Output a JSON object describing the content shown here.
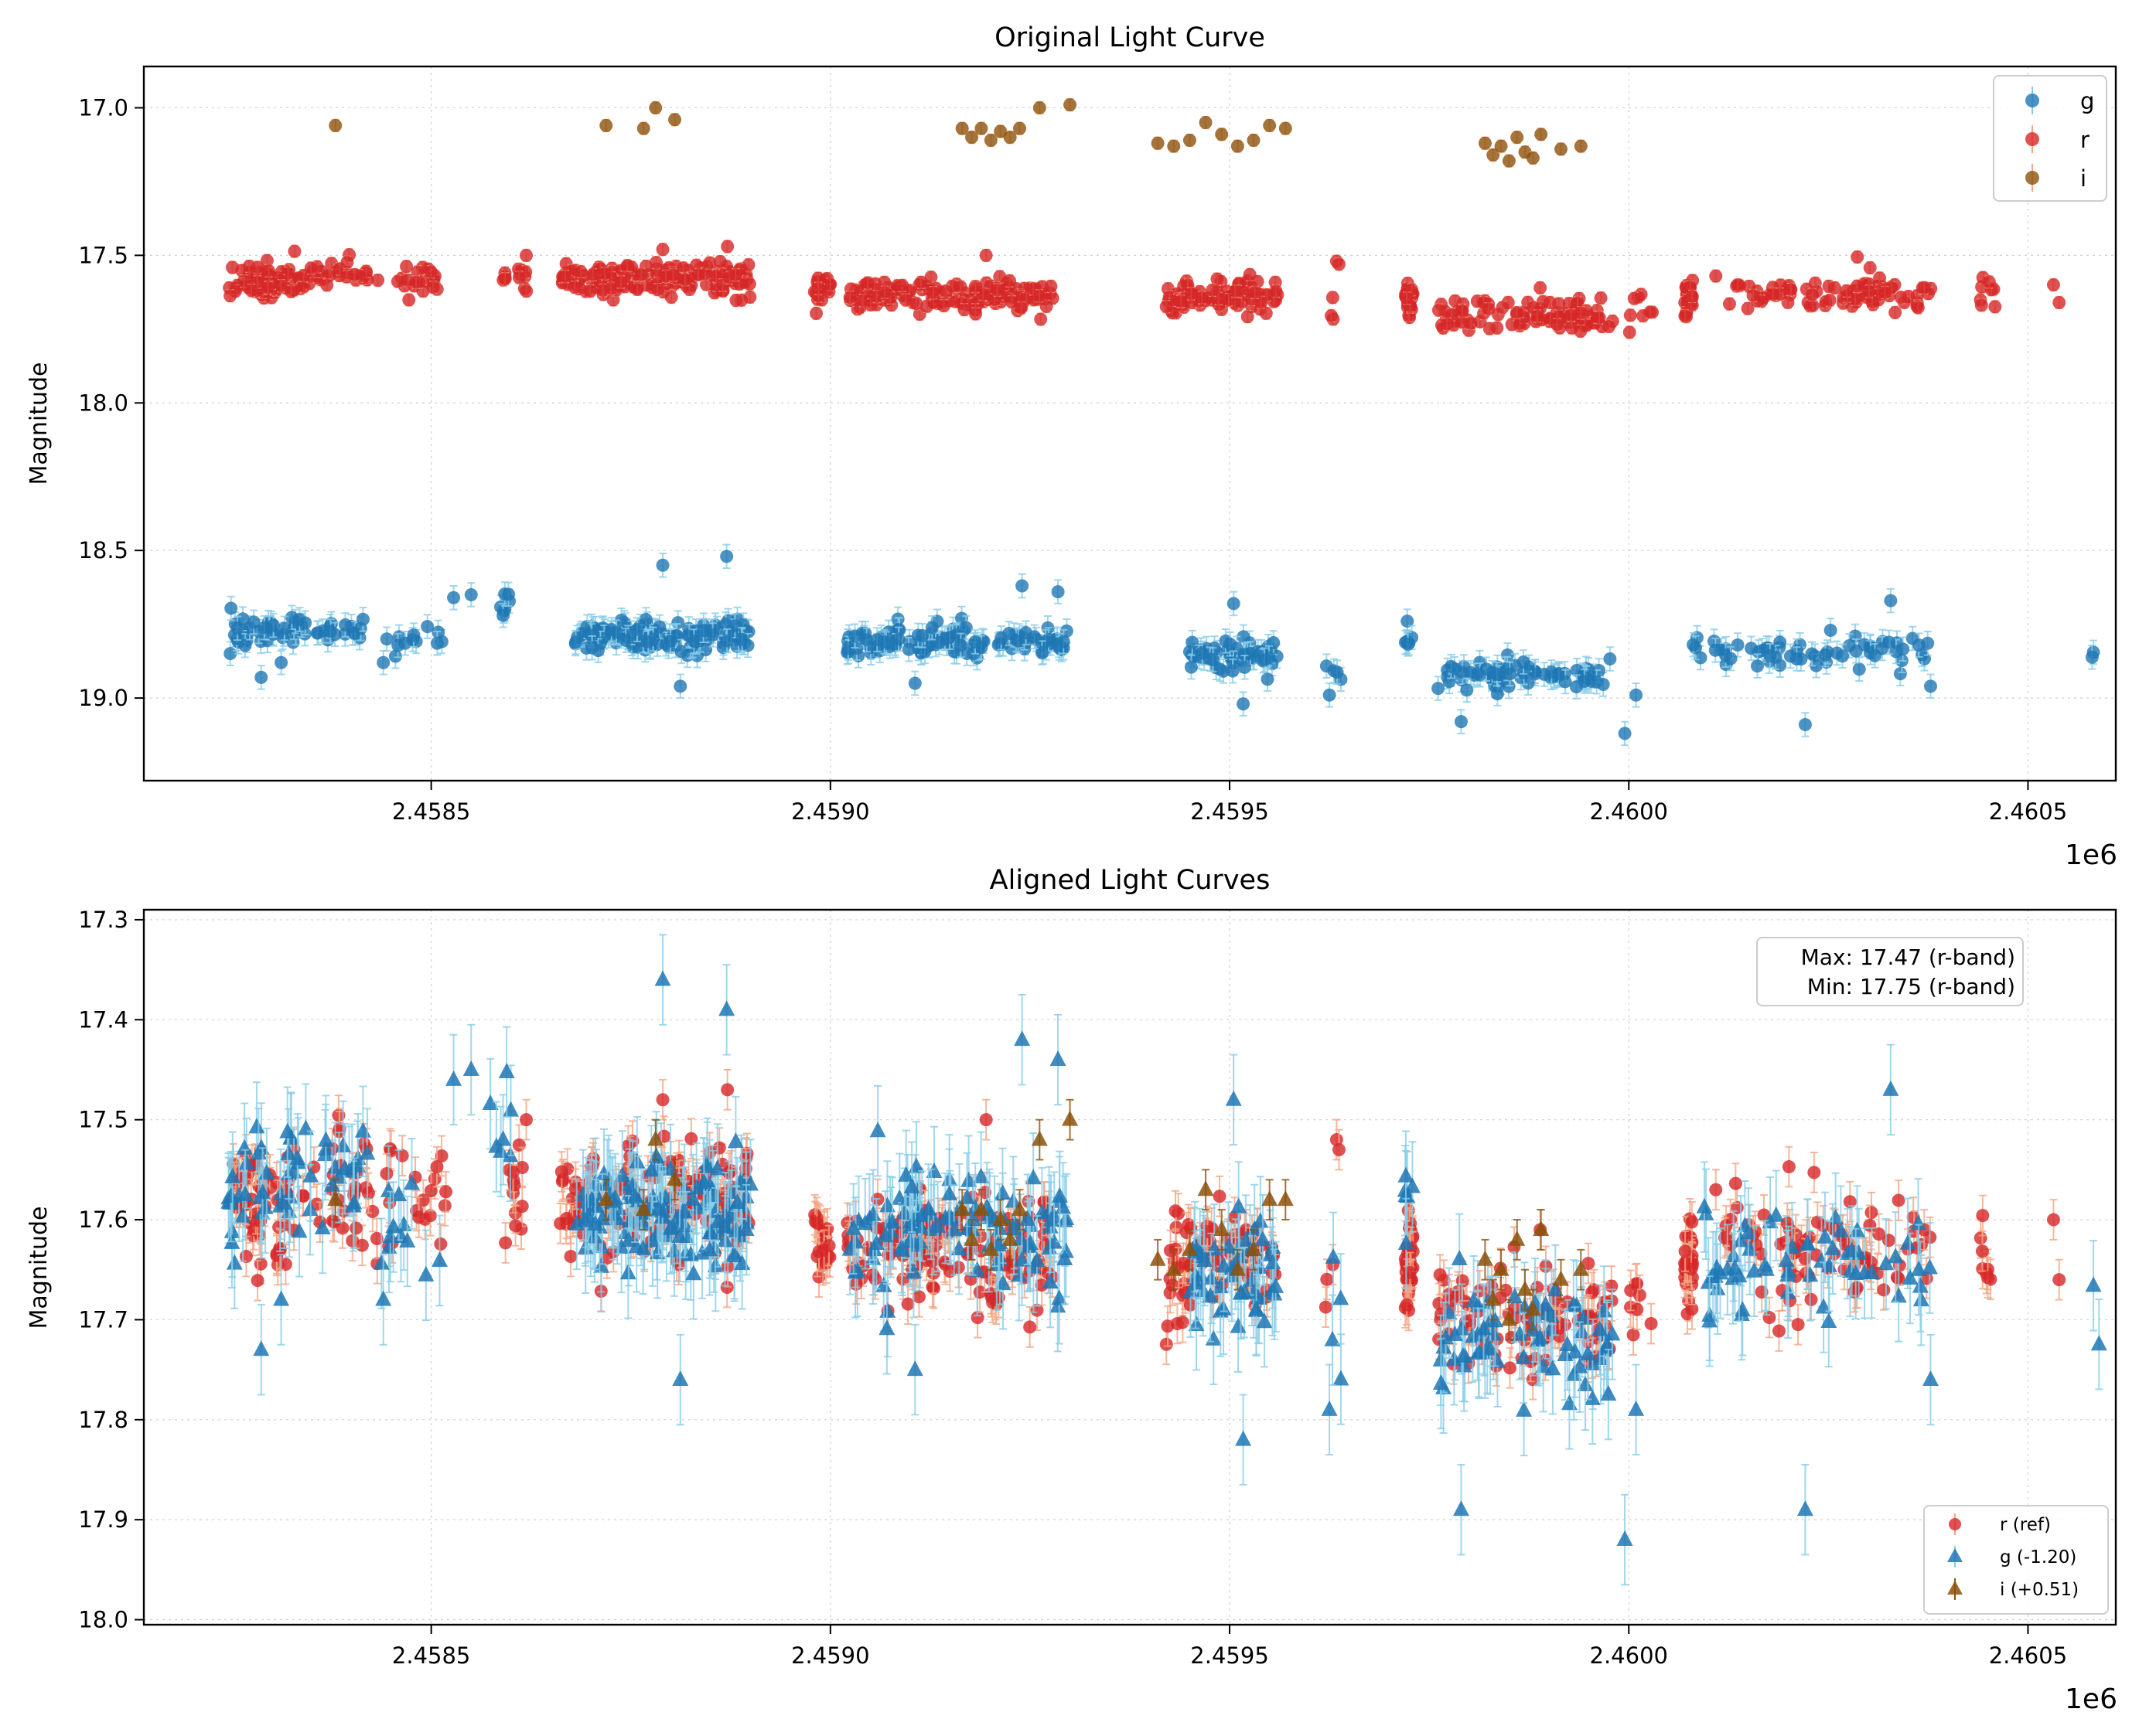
{
  "chart_data": [
    {
      "type": "scatter",
      "title": "Original Light Curve",
      "xlabel": "",
      "ylabel": "Magnitude",
      "x_offset_label": "1e6",
      "xlim": [
        2458140,
        2460610
      ],
      "ylim": [
        19.28,
        16.86
      ],
      "y_inverted": true,
      "grid": true,
      "xticks": [
        2458500,
        2459000,
        2459500,
        2460000,
        2460500
      ],
      "xtick_labels": [
        "2.4585",
        "2.4590",
        "2.4595",
        "2.4600",
        "2.4605"
      ],
      "yticks": [
        17.0,
        17.5,
        18.0,
        18.5,
        19.0
      ],
      "ytick_labels": [
        "17.0",
        "17.5",
        "18.0",
        "18.5",
        "19.0"
      ],
      "legend": {
        "position": "top-right",
        "entries": [
          "g",
          "r",
          "i"
        ]
      },
      "series": [
        {
          "name": "g",
          "color": "#1f77b4",
          "marker": "circle",
          "base_mag": 18.8,
          "err": 0.04,
          "segments": [
            [
              2458245,
              2458335,
              18.77,
              35
            ],
            [
              2458335,
              2458420,
              18.76,
              20
            ],
            [
              2458430,
              2458520,
              18.8,
              12
            ],
            [
              2458570,
              2458600,
              18.7,
              6
            ],
            [
              2458680,
              2458900,
              18.79,
              130
            ],
            [
              2459020,
              2459300,
              18.81,
              110
            ],
            [
              2459450,
              2459560,
              18.86,
              50
            ],
            [
              2459620,
              2459640,
              18.9,
              4
            ],
            [
              2459720,
              2459730,
              18.79,
              6
            ],
            [
              2459760,
              2459980,
              18.92,
              70
            ],
            [
              2460080,
              2460380,
              18.84,
              60
            ],
            [
              2460580,
              2460590,
              18.86,
              2
            ]
          ],
          "outliers": [
            [
              2458287,
              18.93
            ],
            [
              2458312,
              18.88
            ],
            [
              2458440,
              18.88
            ],
            [
              2458528,
              18.66
            ],
            [
              2458550,
              18.65
            ],
            [
              2458590,
              18.72
            ],
            [
              2458790,
              18.55
            ],
            [
              2458812,
              18.96
            ],
            [
              2458870,
              18.52
            ],
            [
              2459240,
              18.62
            ],
            [
              2459285,
              18.64
            ],
            [
              2459106,
              18.95
            ],
            [
              2459505,
              18.68
            ],
            [
              2459517,
              19.02
            ],
            [
              2459625,
              18.99
            ],
            [
              2459790,
              19.08
            ],
            [
              2459995,
              19.12
            ],
            [
              2460009,
              18.99
            ],
            [
              2460221,
              19.09
            ],
            [
              2460328,
              18.67
            ],
            [
              2460378,
              18.96
            ]
          ]
        },
        {
          "name": "r",
          "color": "#d62728",
          "marker": "circle",
          "base_mag": 17.62,
          "err": 0.02,
          "segments": [
            [
              2458245,
              2458340,
              17.58,
              60
            ],
            [
              2458340,
              2458440,
              17.57,
              30
            ],
            [
              2458440,
              2458520,
              17.58,
              20
            ],
            [
              2458590,
              2458620,
              17.58,
              12
            ],
            [
              2458660,
              2458900,
              17.58,
              150
            ],
            [
              2458980,
              2459000,
              17.62,
              20
            ],
            [
              2459020,
              2459280,
              17.63,
              140
            ],
            [
              2459420,
              2459450,
              17.65,
              25
            ],
            [
              2459450,
              2459560,
              17.64,
              60
            ],
            [
              2459620,
              2459630,
              17.68,
              3
            ],
            [
              2459720,
              2459730,
              17.64,
              30
            ],
            [
              2459760,
              2459980,
              17.7,
              90
            ],
            [
              2460000,
              2460030,
              17.68,
              8
            ],
            [
              2460070,
              2460080,
              17.65,
              30
            ],
            [
              2460120,
              2460380,
              17.63,
              80
            ],
            [
              2460440,
              2460460,
              17.63,
              8
            ]
          ],
          "outliers": [
            [
              2458619,
              17.5
            ],
            [
              2458790,
              17.48
            ],
            [
              2458871,
              17.47
            ],
            [
              2459195,
              17.5
            ],
            [
              2459634,
              17.52
            ],
            [
              2459637,
              17.53
            ],
            [
              2459889,
              17.61
            ],
            [
              2460109,
              17.57
            ],
            [
              2460258,
              17.61
            ],
            [
              2460370,
              17.61
            ],
            [
              2460532,
              17.6
            ],
            [
              2460539,
              17.66
            ]
          ]
        },
        {
          "name": "i",
          "color": "#8c510a",
          "marker": "circle",
          "base_mag": 17.1,
          "err": 0.02,
          "points": [
            [
              2458380,
              17.06
            ],
            [
              2458719,
              17.06
            ],
            [
              2458766,
              17.07
            ],
            [
              2458781,
              17.0
            ],
            [
              2458805,
              17.04
            ],
            [
              2459165,
              17.07
            ],
            [
              2459177,
              17.1
            ],
            [
              2459189,
              17.07
            ],
            [
              2459201,
              17.11
            ],
            [
              2459213,
              17.08
            ],
            [
              2459225,
              17.1
            ],
            [
              2459237,
              17.07
            ],
            [
              2459262,
              17.0
            ],
            [
              2459300,
              16.99
            ],
            [
              2459410,
              17.12
            ],
            [
              2459430,
              17.13
            ],
            [
              2459450,
              17.11
            ],
            [
              2459470,
              17.05
            ],
            [
              2459490,
              17.09
            ],
            [
              2459510,
              17.13
            ],
            [
              2459530,
              17.11
            ],
            [
              2459550,
              17.06
            ],
            [
              2459570,
              17.07
            ],
            [
              2459820,
              17.12
            ],
            [
              2459830,
              17.16
            ],
            [
              2459840,
              17.13
            ],
            [
              2459850,
              17.18
            ],
            [
              2459860,
              17.1
            ],
            [
              2459870,
              17.15
            ],
            [
              2459880,
              17.17
            ],
            [
              2459890,
              17.09
            ],
            [
              2459915,
              17.14
            ],
            [
              2459940,
              17.13
            ]
          ]
        }
      ]
    },
    {
      "type": "scatter",
      "title": "Aligned Light Curves",
      "xlabel": "",
      "ylabel": "Magnitude",
      "x_offset_label": "1e6",
      "xlim": [
        2458140,
        2460610
      ],
      "ylim": [
        18.005,
        17.29
      ],
      "y_inverted": true,
      "grid": true,
      "xticks": [
        2458500,
        2459000,
        2459500,
        2460000,
        2460500
      ],
      "xtick_labels": [
        "2.4585",
        "2.4590",
        "2.4595",
        "2.4600",
        "2.4605"
      ],
      "yticks": [
        17.3,
        17.4,
        17.5,
        17.6,
        17.7,
        17.8,
        17.9,
        18.0
      ],
      "ytick_labels": [
        "17.3",
        "17.4",
        "17.5",
        "17.6",
        "17.7",
        "17.8",
        "17.9",
        "18.0"
      ],
      "annotation": [
        "Max: 17.47 (r-band)",
        "Min: 17.75 (r-band)"
      ],
      "legend": {
        "position": "bottom-right",
        "entries": [
          "r (ref)",
          "g (-1.20)",
          "i (+0.51)"
        ]
      },
      "series": [
        {
          "name": "r (ref)",
          "color": "#d62728",
          "ecolor": "#f4a582",
          "marker": "circle",
          "base_mag": 17.62,
          "err": 0.02,
          "segments": [
            [
              2458245,
              2458340,
              17.58,
              60
            ],
            [
              2458340,
              2458440,
              17.57,
              30
            ],
            [
              2458440,
              2458520,
              17.58,
              20
            ],
            [
              2458590,
              2458620,
              17.58,
              12
            ],
            [
              2458660,
              2458900,
              17.58,
              150
            ],
            [
              2458980,
              2459000,
              17.62,
              20
            ],
            [
              2459020,
              2459280,
              17.63,
              140
            ],
            [
              2459420,
              2459450,
              17.65,
              25
            ],
            [
              2459450,
              2459560,
              17.64,
              60
            ],
            [
              2459620,
              2459630,
              17.68,
              3
            ],
            [
              2459720,
              2459730,
              17.64,
              30
            ],
            [
              2459760,
              2459980,
              17.7,
              90
            ],
            [
              2460000,
              2460030,
              17.68,
              8
            ],
            [
              2460070,
              2460080,
              17.65,
              30
            ],
            [
              2460120,
              2460380,
              17.63,
              80
            ],
            [
              2460440,
              2460460,
              17.63,
              8
            ]
          ],
          "outliers": [
            [
              2458619,
              17.5
            ],
            [
              2458790,
              17.48
            ],
            [
              2458871,
              17.47
            ],
            [
              2459195,
              17.5
            ],
            [
              2459634,
              17.52
            ],
            [
              2459637,
              17.53
            ],
            [
              2459889,
              17.61
            ],
            [
              2460109,
              17.57
            ],
            [
              2460258,
              17.61
            ],
            [
              2460370,
              17.61
            ],
            [
              2460532,
              17.6
            ],
            [
              2460539,
              17.66
            ]
          ]
        },
        {
          "name": "g (-1.20)",
          "color": "#1f77b4",
          "ecolor": "#87cde8",
          "marker": "triangle",
          "base_mag": 17.6,
          "err": 0.045,
          "segments": [
            [
              2458245,
              2458335,
              17.57,
              35
            ],
            [
              2458335,
              2458420,
              17.56,
              20
            ],
            [
              2458430,
              2458520,
              17.6,
              12
            ],
            [
              2458570,
              2458600,
              17.5,
              6
            ],
            [
              2458680,
              2458900,
              17.59,
              130
            ],
            [
              2459020,
              2459300,
              17.61,
              110
            ],
            [
              2459450,
              2459560,
              17.66,
              50
            ],
            [
              2459620,
              2459640,
              17.7,
              4
            ],
            [
              2459720,
              2459730,
              17.59,
              6
            ],
            [
              2459760,
              2459980,
              17.72,
              70
            ],
            [
              2460080,
              2460380,
              17.64,
              60
            ],
            [
              2460580,
              2460590,
              17.66,
              2
            ]
          ],
          "outliers": [
            [
              2458287,
              17.73
            ],
            [
              2458312,
              17.68
            ],
            [
              2458440,
              17.68
            ],
            [
              2458528,
              17.46
            ],
            [
              2458550,
              17.45
            ],
            [
              2458590,
              17.52
            ],
            [
              2458790,
              17.36
            ],
            [
              2458812,
              17.76
            ],
            [
              2458870,
              17.39
            ],
            [
              2459240,
              17.42
            ],
            [
              2459285,
              17.44
            ],
            [
              2459106,
              17.75
            ],
            [
              2459505,
              17.48
            ],
            [
              2459517,
              17.82
            ],
            [
              2459625,
              17.79
            ],
            [
              2459790,
              17.89
            ],
            [
              2459995,
              17.92
            ],
            [
              2460009,
              17.79
            ],
            [
              2460221,
              17.89
            ],
            [
              2460328,
              17.47
            ],
            [
              2460378,
              17.76
            ]
          ]
        },
        {
          "name": "i (+0.51)",
          "color": "#8c510a",
          "ecolor": "#8c510a",
          "marker": "triangle",
          "base_mag": 17.61,
          "err": 0.02,
          "points": [
            [
              2458380,
              17.58
            ],
            [
              2458719,
              17.58
            ],
            [
              2458766,
              17.59
            ],
            [
              2458781,
              17.52
            ],
            [
              2458805,
              17.56
            ],
            [
              2459165,
              17.59
            ],
            [
              2459177,
              17.62
            ],
            [
              2459189,
              17.59
            ],
            [
              2459201,
              17.63
            ],
            [
              2459213,
              17.6
            ],
            [
              2459225,
              17.62
            ],
            [
              2459237,
              17.59
            ],
            [
              2459262,
              17.52
            ],
            [
              2459300,
              17.5
            ],
            [
              2459410,
              17.64
            ],
            [
              2459430,
              17.65
            ],
            [
              2459450,
              17.63
            ],
            [
              2459470,
              17.57
            ],
            [
              2459490,
              17.61
            ],
            [
              2459510,
              17.65
            ],
            [
              2459530,
              17.63
            ],
            [
              2459550,
              17.58
            ],
            [
              2459570,
              17.58
            ],
            [
              2459820,
              17.64
            ],
            [
              2459830,
              17.68
            ],
            [
              2459840,
              17.65
            ],
            [
              2459850,
              17.7
            ],
            [
              2459860,
              17.62
            ],
            [
              2459870,
              17.67
            ],
            [
              2459880,
              17.69
            ],
            [
              2459890,
              17.61
            ],
            [
              2459915,
              17.66
            ],
            [
              2459940,
              17.65
            ]
          ]
        }
      ]
    }
  ]
}
